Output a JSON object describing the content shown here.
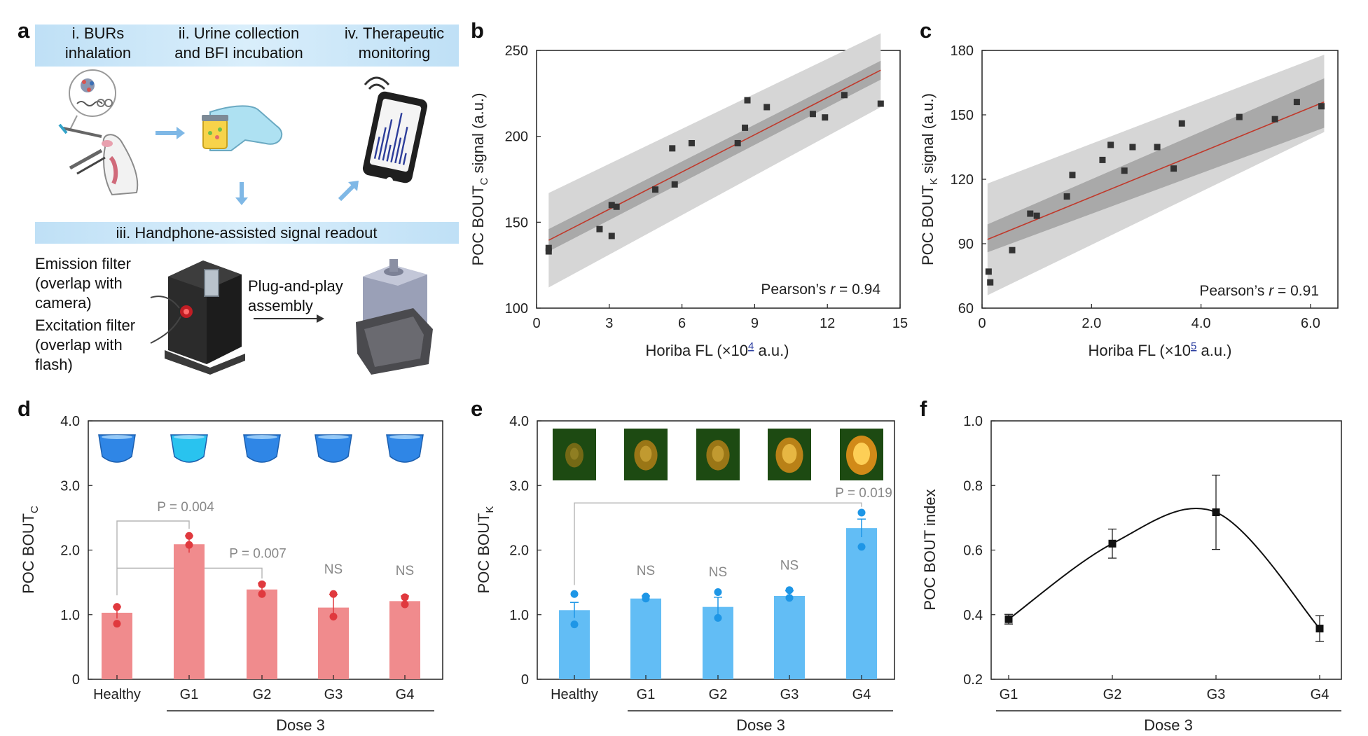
{
  "panel_a": {
    "label": "a",
    "step1": [
      "i. BURs",
      "inhalation"
    ],
    "step2": [
      "ii. Urine collection",
      "and BFI incubation"
    ],
    "step4": [
      "iv. Therapeutic",
      "monitoring"
    ],
    "step3": "iii. Handphone-assisted signal readout",
    "emission": [
      "Emission filter",
      "(overlap with",
      "camera)"
    ],
    "excitation": [
      "Excitation filter",
      "(overlap with",
      "flash)"
    ],
    "plug": [
      "Plug-and-play",
      "assembly"
    ]
  },
  "chart_data": [
    {
      "panel": "b",
      "type": "scatter",
      "x_label_prefix": "Horiba FL (×10",
      "x_label_exp": "4",
      "x_label_suffix": " a.u.)",
      "y_label_main": "POC BOUT",
      "y_label_sub": "C",
      "y_label_suffix": " signal (a.u.)",
      "xlim": [
        0,
        15
      ],
      "ylim": [
        100,
        250
      ],
      "xticks": [
        0,
        3,
        6,
        9,
        12,
        15
      ],
      "xtick_labels": [
        "0",
        "3",
        "6",
        "9",
        "12",
        "15"
      ],
      "yticks": [
        100,
        150,
        200,
        250
      ],
      "annotation_prefix": "Pearson’s ",
      "annotation_r": "r",
      "annotation_value": " = 0.94",
      "points": [
        [
          0.5,
          133
        ],
        [
          0.5,
          135
        ],
        [
          2.6,
          146
        ],
        [
          3.1,
          142
        ],
        [
          3.1,
          160
        ],
        [
          3.3,
          159
        ],
        [
          4.9,
          169
        ],
        [
          5.6,
          193
        ],
        [
          5.7,
          172
        ],
        [
          6.4,
          196
        ],
        [
          8.3,
          196
        ],
        [
          8.6,
          205
        ],
        [
          8.7,
          221
        ],
        [
          9.5,
          217
        ],
        [
          11.4,
          213
        ],
        [
          11.9,
          211
        ],
        [
          12.7,
          224
        ],
        [
          14.2,
          219
        ]
      ],
      "fit": [
        [
          0.5,
          139.5
        ],
        [
          14.2,
          238.5
        ]
      ],
      "ci_inner": {
        "x": [
          0.5,
          14.2
        ],
        "upper": [
          146,
          244
        ],
        "lower": [
          133,
          233
        ]
      },
      "ci_outer": {
        "x": [
          0.5,
          14.2
        ],
        "upper": [
          167,
          260
        ],
        "lower": [
          112,
          217
        ]
      },
      "colors": {
        "points": "#333333",
        "fit": "#c0392b",
        "ci_inner": "#a9a9a9",
        "ci_outer": "#d6d6d6"
      }
    },
    {
      "panel": "c",
      "type": "scatter",
      "x_label_prefix": "Horiba FL (×10",
      "x_label_exp": "5",
      "x_label_suffix": " a.u.)",
      "y_label_main": "POC BOUT",
      "y_label_sub": "K",
      "y_label_suffix": " signal (a.u.)",
      "xlim": [
        0,
        6.5
      ],
      "ylim": [
        60,
        180
      ],
      "xticks": [
        0,
        2,
        4,
        6
      ],
      "xtick_labels": [
        "0",
        "2.0",
        "4.0",
        "6.0"
      ],
      "yticks": [
        60,
        90,
        120,
        150,
        180
      ],
      "annotation_prefix": "Pearson’s ",
      "annotation_r": "r",
      "annotation_value": " = 0.91",
      "points": [
        [
          0.12,
          77
        ],
        [
          0.15,
          72
        ],
        [
          0.55,
          87
        ],
        [
          0.88,
          104
        ],
        [
          1.0,
          103
        ],
        [
          1.55,
          112
        ],
        [
          1.65,
          122
        ],
        [
          2.2,
          129
        ],
        [
          2.35,
          136
        ],
        [
          2.6,
          124
        ],
        [
          2.75,
          135
        ],
        [
          3.2,
          135
        ],
        [
          3.5,
          125
        ],
        [
          3.65,
          146
        ],
        [
          4.7,
          149
        ],
        [
          5.35,
          148
        ],
        [
          5.75,
          156
        ],
        [
          6.2,
          154
        ]
      ],
      "fit": [
        [
          0.1,
          92
        ],
        [
          6.25,
          156
        ]
      ],
      "ci_inner": {
        "x": [
          0.1,
          6.25
        ],
        "upper": [
          99,
          167
        ],
        "lower": [
          86,
          144
        ]
      },
      "ci_outer": {
        "x": [
          0.1,
          6.25
        ],
        "upper": [
          118,
          178
        ],
        "lower": [
          66,
          142
        ]
      },
      "colors": {
        "points": "#333333",
        "fit": "#c0392b",
        "ci_inner": "#a9a9a9",
        "ci_outer": "#d6d6d6"
      }
    },
    {
      "panel": "d",
      "type": "bar",
      "y_label_main": "POC BOUT",
      "y_label_sub": "C",
      "group_label": "Dose 3",
      "categories": [
        "Healthy",
        "G1",
        "G2",
        "G3",
        "G4"
      ],
      "values": [
        1.03,
        2.09,
        1.39,
        1.11,
        1.21
      ],
      "errors": [
        0.09,
        0.13,
        0.1,
        0.2,
        0.08
      ],
      "dots": [
        [
          1.12,
          0.86
        ],
        [
          2.22,
          2.08
        ],
        [
          1.47,
          1.32
        ],
        [
          1.32,
          0.97
        ],
        [
          1.27,
          1.16
        ]
      ],
      "ylim": [
        0,
        4
      ],
      "yticks": [
        0,
        1,
        2,
        3,
        4
      ],
      "ytick_labels": [
        "0",
        "1.0",
        "2.0",
        "3.0",
        "4.0"
      ],
      "comparisons": [
        {
          "from": 0,
          "to": 1,
          "label": "P = 0.004"
        },
        {
          "from": 0,
          "to": 2,
          "label": "P = 0.007"
        }
      ],
      "ns": [
        "",
        "",
        "",
        "NS",
        "NS"
      ],
      "colors": {
        "bar": "#f08b8d",
        "dot": "#e0393e",
        "vial_main": "#2f86e6",
        "vial_light": "#29c3ef"
      }
    },
    {
      "panel": "e",
      "type": "bar",
      "y_label_main": "POC BOUT",
      "y_label_sub": "K",
      "group_label": "Dose 3",
      "categories": [
        "Healthy",
        "G1",
        "G2",
        "G3",
        "G4"
      ],
      "values": [
        1.07,
        1.25,
        1.12,
        1.29,
        2.34
      ],
      "errors": [
        0.12,
        0.04,
        0.15,
        0.08,
        0.14
      ],
      "dots": [
        [
          1.32,
          0.85
        ],
        [
          1.28,
          1.25
        ],
        [
          1.35,
          0.95
        ],
        [
          1.38,
          1.26
        ],
        [
          2.58,
          2.05
        ]
      ],
      "ylim": [
        0,
        4
      ],
      "yticks": [
        0,
        1,
        2,
        3,
        4
      ],
      "ytick_labels": [
        "0",
        "1.0",
        "2.0",
        "3.0",
        "4.0"
      ],
      "comparisons": [
        {
          "from": 0,
          "to": 4,
          "label": "P = 0.019"
        }
      ],
      "ns": [
        "",
        "NS",
        "NS",
        "NS",
        ""
      ],
      "colors": {
        "bar": "#62bdf5",
        "dot": "#1e96e6",
        "img_bg": "#1d4a12",
        "glow": "#ff9a1a"
      }
    },
    {
      "panel": "f",
      "type": "line",
      "y_label": "POC BOUT index",
      "group_label": "Dose 3",
      "categories": [
        "G1",
        "G2",
        "G3",
        "G4"
      ],
      "values": [
        0.386,
        0.62,
        0.717,
        0.357
      ],
      "errors": [
        0.015,
        0.045,
        0.115,
        0.04
      ],
      "ylim": [
        0.2,
        1.0
      ],
      "yticks": [
        0.2,
        0.4,
        0.6,
        0.8,
        1.0
      ],
      "ytick_labels": [
        "0.2",
        "0.4",
        "0.6",
        "0.8",
        "1.0"
      ],
      "colors": {
        "line": "#111111",
        "marker": "#111111"
      }
    }
  ]
}
